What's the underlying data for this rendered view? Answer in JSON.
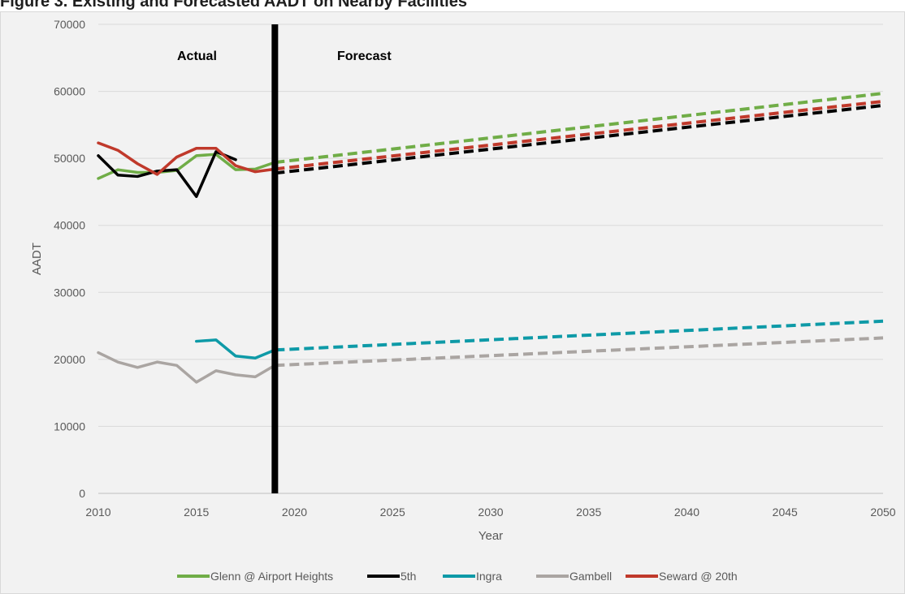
{
  "caption": "Figure 3. Existing and Forecasted AADT on Nearby Facilities",
  "chart_data": {
    "type": "line",
    "title": "",
    "xlabel": "Year",
    "ylabel": "AADT",
    "xlim": [
      2010,
      2050
    ],
    "ylim": [
      0,
      70000
    ],
    "x_ticks": [
      2010,
      2015,
      2020,
      2025,
      2030,
      2035,
      2040,
      2045,
      2050
    ],
    "y_ticks": [
      0,
      10000,
      20000,
      30000,
      40000,
      50000,
      60000,
      70000
    ],
    "grid": "horizontal",
    "legend_position": "bottom",
    "divider_year": 2019,
    "annotations": [
      "Actual",
      "Forecast"
    ],
    "series": [
      {
        "name": "Glenn @ Airport Heights",
        "color": "#70ad47",
        "actual": {
          "x": [
            2010,
            2011,
            2012,
            2013,
            2014,
            2015,
            2016,
            2017,
            2018,
            2019
          ],
          "y": [
            47000,
            48300,
            47900,
            47900,
            48200,
            50400,
            50600,
            48300,
            48400,
            49400
          ]
        },
        "forecast": {
          "x": [
            2019,
            2050
          ],
          "y": [
            49400,
            59700
          ]
        }
      },
      {
        "name": "5th",
        "color": "#000000",
        "actual": {
          "x": [
            2010,
            2011,
            2012,
            2013,
            2014,
            2015,
            2016,
            2017
          ],
          "y": [
            50400,
            47500,
            47300,
            48100,
            48300,
            44300,
            51000,
            49800
          ]
        },
        "forecast": {
          "x": [
            2019,
            2050
          ],
          "y": [
            47800,
            57900
          ]
        }
      },
      {
        "name": "Ingra",
        "color": "#0e9aa7",
        "actual": {
          "x": [
            2015,
            2016,
            2017,
            2018,
            2019
          ],
          "y": [
            22700,
            22900,
            20500,
            20200,
            21400
          ]
        },
        "forecast": {
          "x": [
            2019,
            2050
          ],
          "y": [
            21400,
            25700
          ]
        }
      },
      {
        "name": "Gambell",
        "color": "#aaa5a2",
        "actual": {
          "x": [
            2010,
            2011,
            2012,
            2013,
            2014,
            2015,
            2016,
            2017,
            2018,
            2019
          ],
          "y": [
            21000,
            19600,
            18800,
            19600,
            19100,
            16600,
            18300,
            17700,
            17400,
            19100
          ]
        },
        "forecast": {
          "x": [
            2019,
            2050
          ],
          "y": [
            19100,
            23200
          ]
        }
      },
      {
        "name": "Seward @ 20th",
        "color": "#c0392b",
        "actual": {
          "x": [
            2010,
            2011,
            2012,
            2013,
            2014,
            2015,
            2016,
            2017,
            2018,
            2019
          ],
          "y": [
            52300,
            51200,
            49200,
            47600,
            50200,
            51500,
            51500,
            48900,
            48000,
            48400
          ]
        },
        "forecast": {
          "x": [
            2019,
            2050
          ],
          "y": [
            48400,
            58500
          ]
        }
      }
    ]
  }
}
